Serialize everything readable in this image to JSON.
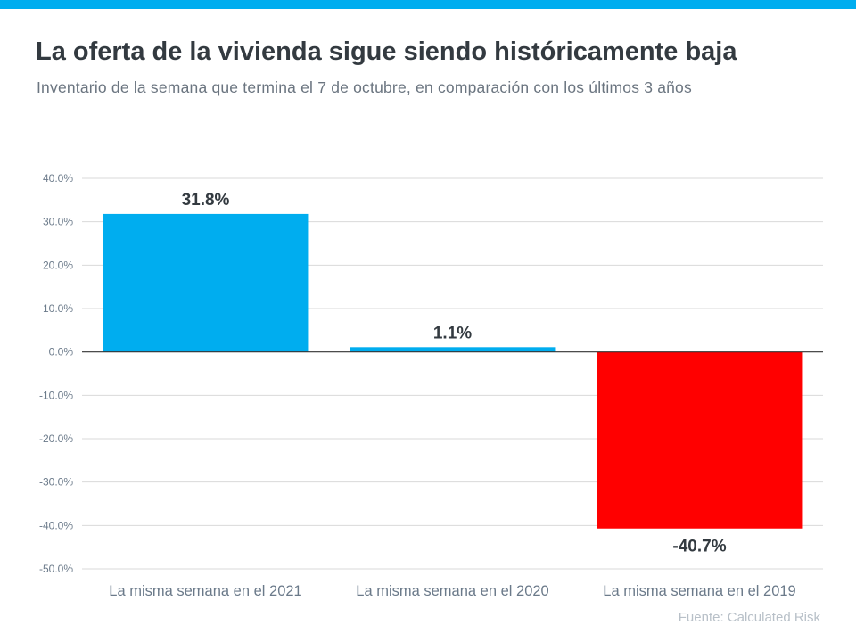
{
  "header": {
    "title": "La oferta de la vivienda sigue siendo históricamente baja",
    "subtitle": "Inventario de la semana que termina el 7 de octubre, en comparación con los últimos 3 años"
  },
  "source": "Fuente:  Calculated Risk",
  "colors": {
    "accent": "#00adef",
    "positive": "#00adef",
    "negative": "#ff0000",
    "grid": "#d9d9d9",
    "axis_text": "#6b7a8a",
    "label_text": "#333a40"
  },
  "chart_data": {
    "type": "bar",
    "title": "La oferta de la vivienda sigue siendo históricamente baja",
    "categories": [
      "La misma semana en el 2021",
      "La misma semana en el 2020",
      "La misma semana en el 2019"
    ],
    "values": [
      31.8,
      1.1,
      -40.7
    ],
    "data_labels": [
      "31.8%",
      "1.1%",
      "-40.7%"
    ],
    "bar_colors": [
      "#00adef",
      "#00adef",
      "#ff0000"
    ],
    "ylim": [
      -50,
      40
    ],
    "yticks": [
      40,
      30,
      20,
      10,
      0,
      -10,
      -20,
      -30,
      -40,
      -50
    ],
    "ytick_labels": [
      "40.0%",
      "30.0%",
      "20.0%",
      "10.0%",
      "0.0%",
      "-10.0%",
      "-20.0%",
      "-30.0%",
      "-40.0%",
      "-50.0%"
    ],
    "grid": true,
    "legend": "none"
  }
}
